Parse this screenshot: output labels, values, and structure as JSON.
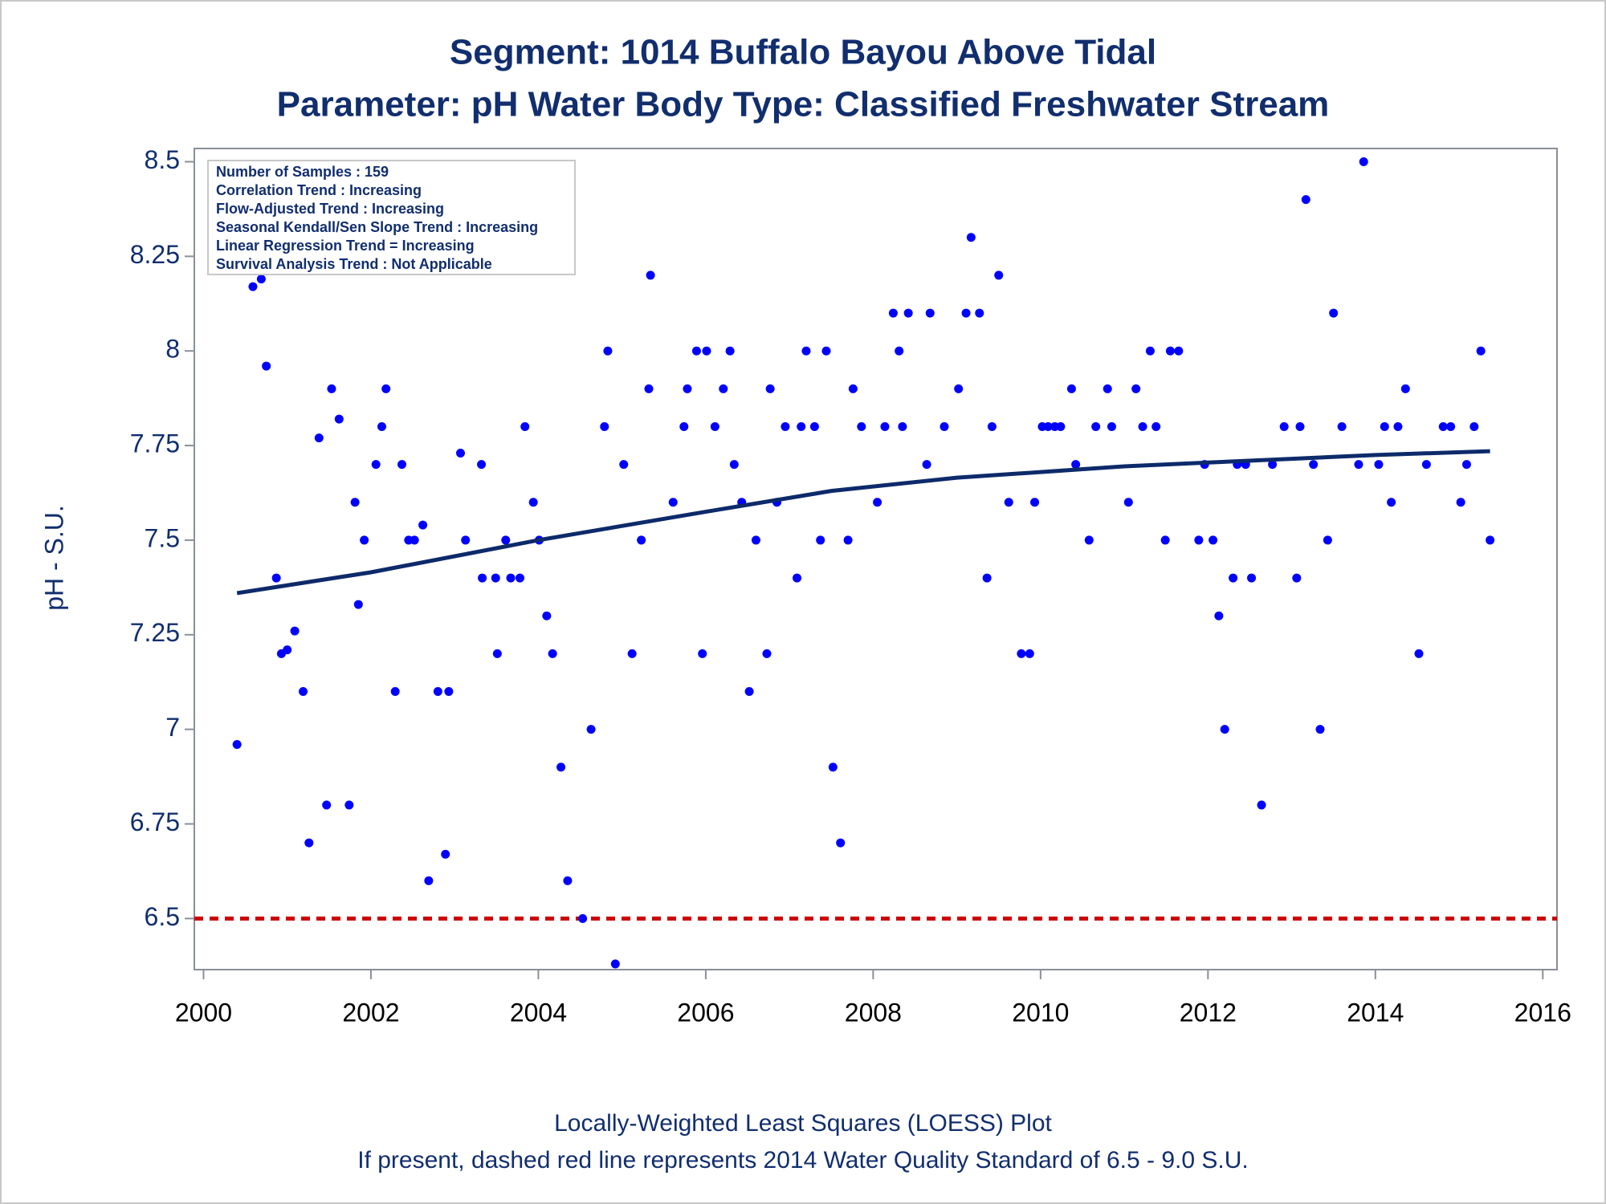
{
  "chart_data": {
    "type": "scatter",
    "title": "Segment: 1014  Buffalo Bayou Above Tidal",
    "subtitle": "Parameter: pH   Water Body Type: Classified Freshwater Stream",
    "y_label": "pH - S.U.",
    "stats": [
      "Number of Samples : 159",
      "Correlation Trend : Increasing",
      "Flow-Adjusted Trend : Increasing",
      "Seasonal Kendall/Sen Slope Trend : Increasing",
      "Linear Regression Trend = Increasing",
      "Survival Analysis Trend : Not Applicable"
    ],
    "footnotes": [
      "Locally-Weighted Least Squares (LOESS) Plot",
      "If present, dashed red line represents 2014 Water Quality Standard of 6.5 - 9.0 S.U."
    ],
    "xlim": [
      1999.89,
      2016.17
    ],
    "xticks": [
      2000,
      2002,
      2004,
      2006,
      2008,
      2010,
      2012,
      2014,
      2016
    ],
    "ylim": [
      6.365,
      8.535
    ],
    "yticks": [
      6.5,
      6.75,
      7,
      7.25,
      7.5,
      7.75,
      8,
      8.25,
      8.5
    ],
    "points": {
      "color": "#0000ff",
      "x": [
        2000.4,
        2000.56,
        2000.59,
        2000.69,
        2000.75,
        2000.87,
        2000.93,
        2001.0,
        2001.09,
        2001.19,
        2001.26,
        2001.38,
        2001.47,
        2001.53,
        2001.62,
        2001.74,
        2001.81,
        2001.85,
        2001.92,
        2002.06,
        2002.13,
        2002.18,
        2002.29,
        2002.37,
        2002.45,
        2002.52,
        2002.62,
        2002.69,
        2002.8,
        2002.89,
        2002.93,
        2003.07,
        2003.13,
        2003.32,
        2003.33,
        2003.49,
        2003.51,
        2003.61,
        2003.67,
        2003.78,
        2003.84,
        2003.94,
        2004.01,
        2004.1,
        2004.17,
        2004.27,
        2004.35,
        2004.53,
        2004.63,
        2004.79,
        2004.83,
        2004.92,
        2005.02,
        2005.12,
        2005.23,
        2005.32,
        2005.34,
        2005.61,
        2005.74,
        2005.78,
        2005.89,
        2005.96,
        2006.01,
        2006.11,
        2006.21,
        2006.29,
        2006.34,
        2006.43,
        2006.52,
        2006.6,
        2006.73,
        2006.77,
        2006.85,
        2006.95,
        2007.09,
        2007.14,
        2007.2,
        2007.3,
        2007.37,
        2007.44,
        2007.52,
        2007.61,
        2007.7,
        2007.76,
        2007.86,
        2008.05,
        2008.14,
        2008.24,
        2008.31,
        2008.35,
        2008.42,
        2008.64,
        2008.68,
        2008.85,
        2009.02,
        2009.11,
        2009.17,
        2009.27,
        2009.36,
        2009.42,
        2009.5,
        2009.62,
        2009.77,
        2009.87,
        2009.93,
        2010.02,
        2010.09,
        2010.17,
        2010.24,
        2010.37,
        2010.42,
        2010.58,
        2010.66,
        2010.8,
        2010.85,
        2011.05,
        2011.14,
        2011.22,
        2011.31,
        2011.38,
        2011.49,
        2011.55,
        2011.65,
        2011.89,
        2011.96,
        2012.06,
        2012.13,
        2012.2,
        2012.3,
        2012.35,
        2012.45,
        2012.52,
        2012.64,
        2012.77,
        2012.91,
        2013.06,
        2013.1,
        2013.17,
        2013.26,
        2013.34,
        2013.43,
        2013.5,
        2013.6,
        2013.8,
        2013.86,
        2014.04,
        2014.11,
        2014.19,
        2014.27,
        2014.36,
        2014.52,
        2014.61,
        2014.81,
        2014.9,
        2015.02,
        2015.09,
        2015.18,
        2015.26,
        2015.37
      ],
      "values": [
        6.96,
        8.22,
        8.17,
        8.19,
        7.96,
        7.4,
        7.2,
        7.21,
        7.26,
        7.1,
        6.7,
        7.77,
        6.8,
        7.9,
        7.82,
        6.8,
        7.6,
        7.33,
        7.5,
        7.7,
        7.8,
        7.9,
        7.1,
        7.7,
        7.5,
        7.5,
        7.54,
        6.6,
        7.1,
        6.67,
        7.1,
        7.73,
        7.5,
        7.7,
        7.4,
        7.4,
        7.2,
        7.5,
        7.4,
        7.4,
        7.8,
        7.6,
        7.5,
        7.3,
        7.2,
        6.9,
        6.6,
        6.5,
        7.0,
        7.8,
        8.0,
        6.38,
        7.7,
        7.2,
        7.5,
        7.9,
        8.2,
        7.6,
        7.8,
        7.9,
        8.0,
        7.2,
        8.0,
        7.8,
        7.9,
        8.0,
        7.7,
        7.6,
        7.1,
        7.5,
        7.2,
        7.9,
        7.6,
        7.8,
        7.4,
        7.8,
        8.0,
        7.8,
        7.5,
        8.0,
        6.9,
        6.7,
        7.5,
        7.9,
        7.8,
        7.6,
        7.8,
        8.1,
        8.0,
        7.8,
        8.1,
        7.7,
        8.1,
        7.8,
        7.9,
        8.1,
        8.3,
        8.1,
        7.4,
        7.8,
        8.2,
        7.6,
        7.2,
        7.2,
        7.6,
        7.8,
        7.8,
        7.8,
        7.8,
        7.9,
        7.7,
        7.5,
        7.8,
        7.9,
        7.8,
        7.6,
        7.9,
        7.8,
        8.0,
        7.8,
        7.5,
        8.0,
        8.0,
        7.5,
        7.7,
        7.5,
        7.3,
        7.0,
        7.4,
        7.7,
        7.7,
        7.4,
        6.8,
        7.7,
        7.8,
        7.4,
        7.8,
        8.4,
        7.7,
        7.0,
        7.5,
        8.1,
        7.8,
        7.7,
        8.5,
        7.7,
        7.8,
        7.6,
        7.8,
        7.9,
        7.2,
        7.7,
        7.8,
        7.8,
        7.6,
        7.7,
        7.8,
        8.0,
        7.5
      ]
    },
    "loess": {
      "color": "#0d2a6a",
      "x": [
        2000.4,
        2002,
        2004,
        2006,
        2007.5,
        2009,
        2010,
        2011,
        2012,
        2013,
        2014,
        2015.37
      ],
      "values": [
        7.36,
        7.415,
        7.5,
        7.575,
        7.63,
        7.665,
        7.68,
        7.695,
        7.705,
        7.715,
        7.725,
        7.735
      ]
    },
    "reference_line": {
      "value": 6.5,
      "color": "#cc0000"
    }
  }
}
